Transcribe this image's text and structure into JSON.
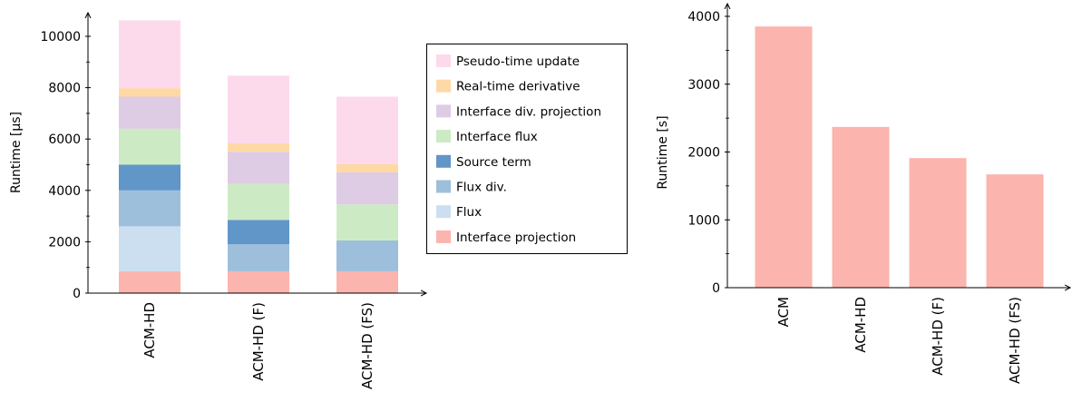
{
  "chart_data": [
    {
      "type": "bar",
      "stacked": true,
      "ylabel": "Runtime [µs]",
      "xlabel": "",
      "ylim": [
        0,
        10600
      ],
      "yticks": [
        0,
        2000,
        4000,
        6000,
        8000,
        10000
      ],
      "categories": [
        "ACM-HD",
        "ACM-HD (F)",
        "ACM-HD (FS)"
      ],
      "legend_position": "right",
      "series": [
        {
          "name": "Interface projection",
          "color": "#fbb4ae",
          "values": [
            850,
            850,
            850
          ]
        },
        {
          "name": "Flux",
          "color": "#ccdff0",
          "values": [
            1750,
            0,
            0
          ]
        },
        {
          "name": "Flux div.",
          "color": "#9ebfdc",
          "values": [
            1400,
            1050,
            1200
          ]
        },
        {
          "name": "Source term",
          "color": "#6096c8",
          "values": [
            1000,
            950,
            0
          ]
        },
        {
          "name": "Interface flux",
          "color": "#ccebc5",
          "values": [
            1400,
            1400,
            1400
          ]
        },
        {
          "name": "Interface div. projection",
          "color": "#decbe4",
          "values": [
            1250,
            1250,
            1250
          ]
        },
        {
          "name": "Real-time derivative",
          "color": "#fed9a6",
          "values": [
            330,
            330,
            330
          ]
        },
        {
          "name": "Pseudo-time update",
          "color": "#fdd9ec",
          "values": [
            2640,
            2640,
            2620
          ]
        }
      ]
    },
    {
      "type": "bar",
      "ylabel": "Runtime [s]",
      "xlabel": "",
      "ylim": [
        0,
        4000
      ],
      "yticks": [
        0,
        1000,
        2000,
        3000,
        4000
      ],
      "categories": [
        "ACM",
        "ACM-HD",
        "ACM-HD (F)",
        "ACM-HD (FS)"
      ],
      "color": "#fbb4ae",
      "values": [
        3850,
        2370,
        1910,
        1670
      ]
    }
  ]
}
